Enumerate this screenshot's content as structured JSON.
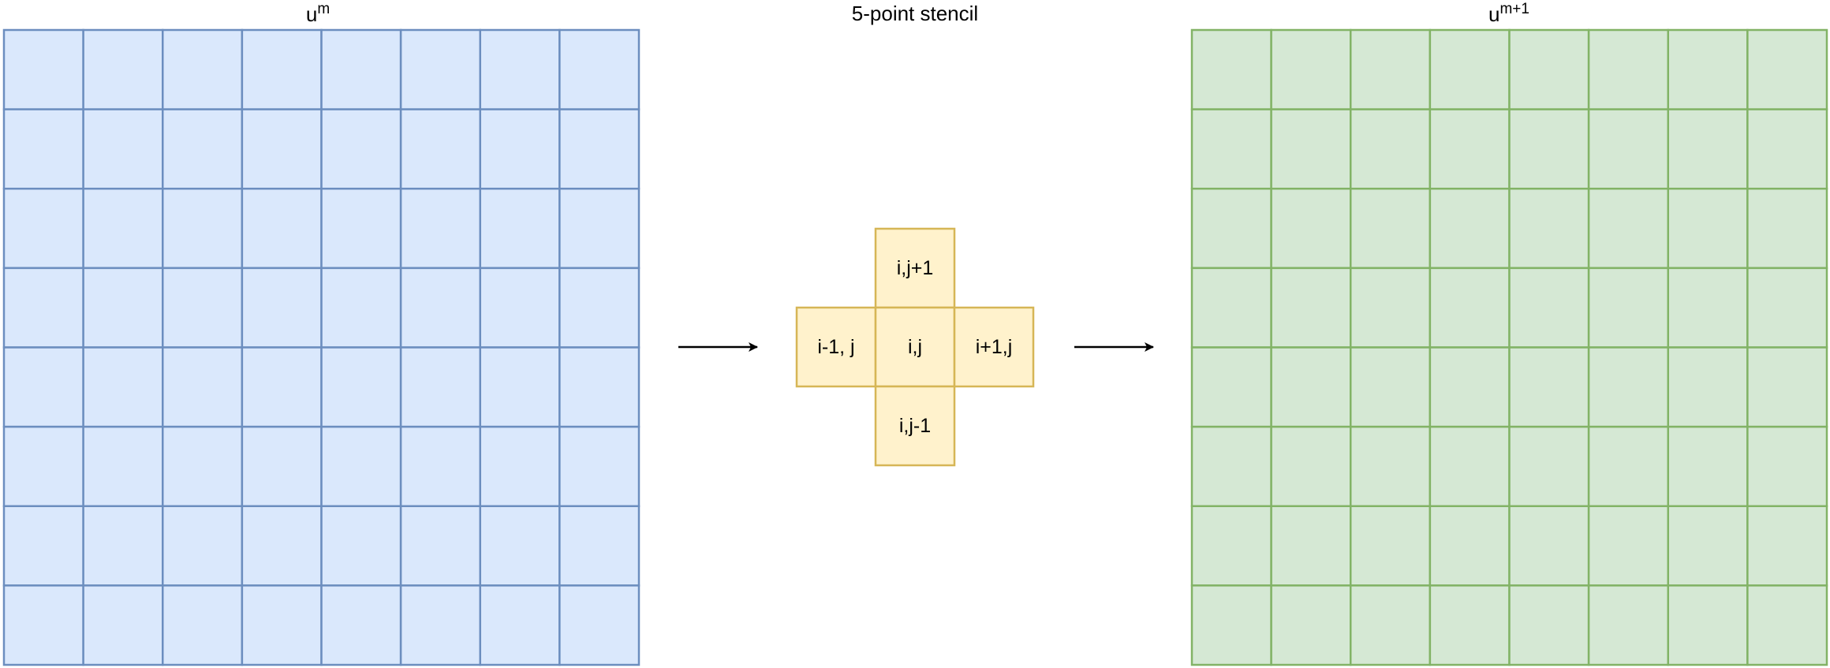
{
  "left_grid": {
    "title_base": "u",
    "title_superscript": "m",
    "rows": 8,
    "cols": 8,
    "fill_color": "#dae8fc",
    "stroke_color": "#6c8ebf"
  },
  "stencil": {
    "title": "5-point stencil",
    "fill_color": "#fff2cc",
    "stroke_color": "#d6b656",
    "cells": {
      "top": "i,j+1",
      "left": "i-1, j",
      "center": "i,j",
      "right": "i+1,j",
      "bottom": "i,j-1"
    }
  },
  "right_grid": {
    "title_base": "u",
    "title_superscript": "m+1",
    "rows": 8,
    "cols": 8,
    "fill_color": "#d5e8d4",
    "stroke_color": "#82b366"
  },
  "arrow_color": "#000000"
}
